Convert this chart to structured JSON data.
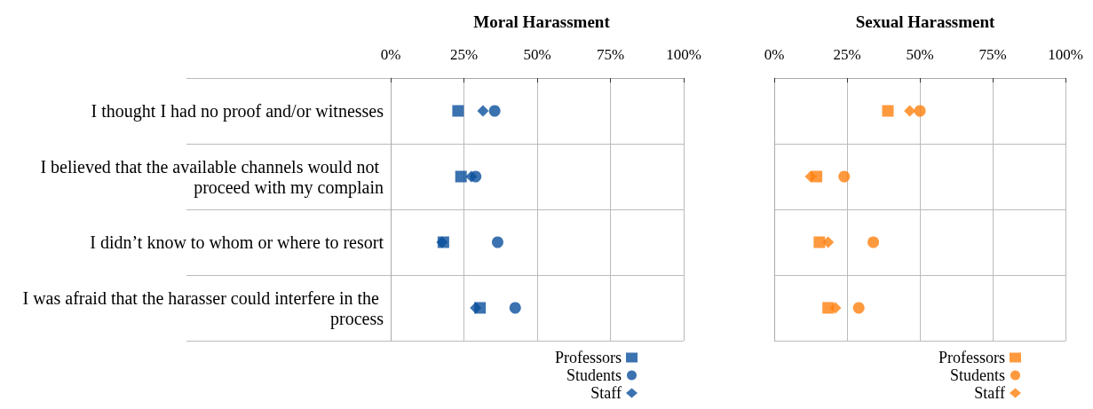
{
  "chart_data": [
    {
      "type": "scatter",
      "title": "Moral Harassment",
      "orientation": "horizontal",
      "categories": [
        "I thought I had no proof and/or witnesses",
        "I believed that the available channels would not proceed with my complain",
        "I didn’t know to whom or where to resort",
        "I was afraid that the harasser could interfere in the process"
      ],
      "xlim": [
        0,
        100
      ],
      "xticks": [
        {
          "value": 0,
          "label": "0%"
        },
        {
          "value": 25,
          "label": "25%"
        },
        {
          "value": 50,
          "label": "50%"
        },
        {
          "value": 75,
          "label": "75%"
        },
        {
          "value": 100,
          "label": "100%"
        }
      ],
      "grid": true,
      "legend": "bottom",
      "series": [
        {
          "name": "Professors",
          "color": "#0a4f9c",
          "marker": "square",
          "values": [
            23,
            24,
            18,
            30.5
          ]
        },
        {
          "name": "Students",
          "color": "#0a4f9c",
          "marker": "circle",
          "values": [
            35.5,
            29,
            36.5,
            42.5
          ]
        },
        {
          "name": "Staff",
          "color": "#0a4f9c",
          "marker": "diamond",
          "values": [
            31.5,
            27.5,
            17.5,
            29
          ]
        }
      ]
    },
    {
      "type": "scatter",
      "title": "Sexual Harassment",
      "orientation": "horizontal",
      "categories": [
        null,
        null,
        null,
        null
      ],
      "tick_labels": "x",
      "xlim": [
        0,
        100
      ],
      "xticks": [
        {
          "value": 0,
          "label": "0%"
        },
        {
          "value": 25,
          "label": "25%"
        },
        {
          "value": 50,
          "label": "50%"
        },
        {
          "value": 75,
          "label": "75%"
        },
        {
          "value": 100,
          "label": "100%"
        }
      ],
      "grid": true,
      "legend": "bottom",
      "series": [
        {
          "name": "Professors",
          "color": "#ff7f0e",
          "marker": "square",
          "values": [
            39,
            14.5,
            15.5,
            18.5
          ]
        },
        {
          "name": "Students",
          "color": "#ff7f0e",
          "marker": "circle",
          "values": [
            50,
            24,
            34,
            29
          ]
        },
        {
          "name": "Staff",
          "color": "#ff7f0e",
          "marker": "diamond",
          "values": [
            46.5,
            12.5,
            18.5,
            21
          ]
        }
      ]
    }
  ]
}
